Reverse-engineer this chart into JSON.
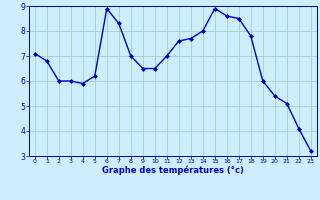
{
  "x": [
    0,
    1,
    2,
    3,
    4,
    5,
    6,
    7,
    8,
    9,
    10,
    11,
    12,
    13,
    14,
    15,
    16,
    17,
    18,
    19,
    20,
    21,
    22,
    23
  ],
  "y": [
    7.1,
    6.8,
    6.0,
    6.0,
    5.9,
    6.2,
    8.9,
    8.3,
    7.0,
    6.5,
    6.5,
    7.0,
    7.6,
    7.7,
    8.0,
    8.9,
    8.6,
    8.5,
    7.8,
    6.0,
    5.4,
    5.1,
    4.1,
    3.2
  ],
  "line_color": "#0000cc",
  "marker": "D",
  "marker_size": 2.0,
  "line_width": 1.0,
  "bg_color": "#cceeff",
  "grid_color": "#99ccbb",
  "xlabel": "Graphe des températures (°c)",
  "xlabel_color": "#0000cc",
  "tick_color": "#0000cc",
  "ylim": [
    3,
    9
  ],
  "xlim": [
    -0.5,
    23.5
  ],
  "yticks": [
    3,
    4,
    5,
    6,
    7,
    8,
    9
  ],
  "xticks": [
    0,
    1,
    2,
    3,
    4,
    5,
    6,
    7,
    8,
    9,
    10,
    11,
    12,
    13,
    14,
    15,
    16,
    17,
    18,
    19,
    20,
    21,
    22,
    23
  ],
  "figsize": [
    3.2,
    2.0
  ],
  "dpi": 100
}
